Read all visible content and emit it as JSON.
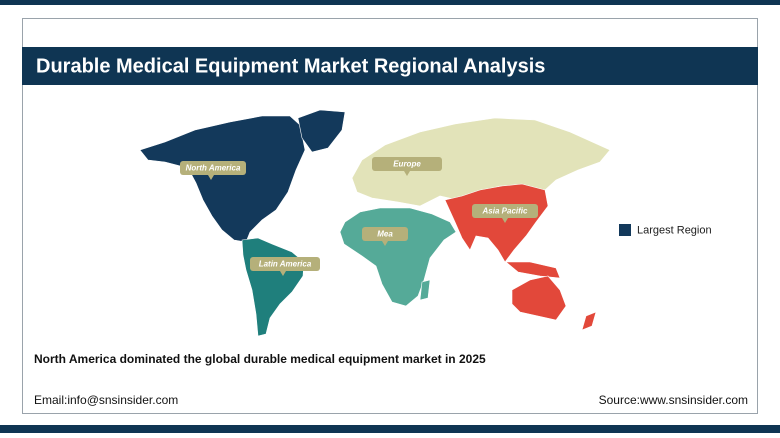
{
  "header": {
    "title": "Durable Medical Equipment Market Regional Analysis"
  },
  "map": {
    "regions": [
      {
        "label": "North America",
        "color": "#13395b"
      },
      {
        "label": "Latin America",
        "color": "#1f7f7c"
      },
      {
        "label": "Europe",
        "color": "#e2e3b9"
      },
      {
        "label": "Mea",
        "color": "#55aa98"
      },
      {
        "label": "Asia Pacific",
        "color": "#e2483a"
      }
    ]
  },
  "legend": {
    "label": "Largest Region",
    "color": "#13395b"
  },
  "caption": "North America dominated the global durable medical equipment market in 2025",
  "footer": {
    "email": "Email:info@snsinsider.com",
    "source": "Source:www.snsinsider.com"
  }
}
